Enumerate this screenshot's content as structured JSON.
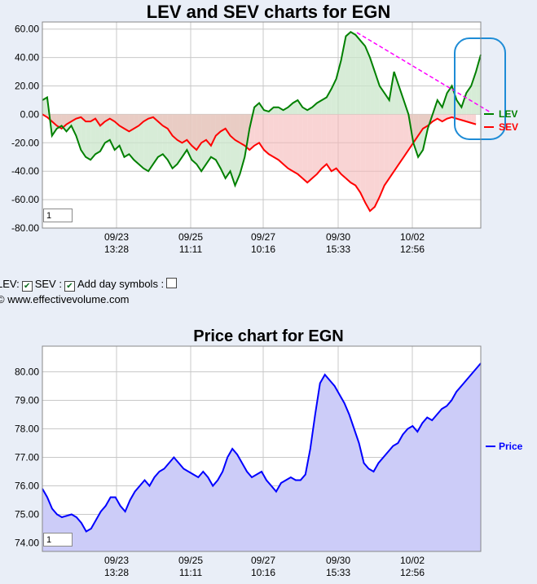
{
  "chart_data": [
    {
      "type": "line",
      "title": "LEV and SEV charts for EGN",
      "ylim": [
        -80,
        65
      ],
      "yticks": [
        "60.00",
        "40.00",
        "20.00",
        "0.00",
        "-20.00",
        "-40.00",
        "-60.00",
        "-80.00"
      ],
      "ytick_values": [
        60,
        40,
        20,
        0,
        -20,
        -40,
        -60,
        -80
      ],
      "xticks": [
        {
          "date": "09/23",
          "time": "13:28"
        },
        {
          "date": "09/25",
          "time": "11:11"
        },
        {
          "date": "09/27",
          "time": "10:16"
        },
        {
          "date": "09/30",
          "time": "15:33"
        },
        {
          "date": "10/02",
          "time": "12:56"
        }
      ],
      "grid": true,
      "series": [
        {
          "name": "LEV",
          "color": "#008000",
          "values": [
            10,
            12,
            -15,
            -10,
            -8,
            -12,
            -8,
            -15,
            -25,
            -30,
            -32,
            -28,
            -26,
            -20,
            -18,
            -25,
            -22,
            -30,
            -28,
            -32,
            -35,
            -38,
            -40,
            -35,
            -30,
            -28,
            -32,
            -38,
            -35,
            -30,
            -25,
            -32,
            -35,
            -40,
            -35,
            -30,
            -32,
            -38,
            -45,
            -40,
            -50,
            -42,
            -30,
            -10,
            5,
            8,
            3,
            2,
            5,
            5,
            3,
            5,
            8,
            10,
            5,
            3,
            5,
            8,
            10,
            12,
            18,
            25,
            38,
            55,
            58,
            56,
            52,
            48,
            40,
            30,
            20,
            15,
            10,
            30,
            20,
            10,
            0,
            -20,
            -30,
            -25,
            -10,
            0,
            10,
            5,
            15,
            20,
            10,
            5,
            15,
            20,
            30,
            42
          ]
        },
        {
          "name": "SEV",
          "color": "#ff0000",
          "values": [
            0,
            -2,
            -5,
            -8,
            -10,
            -7,
            -5,
            -3,
            -2,
            -5,
            -5,
            -3,
            -8,
            -5,
            -3,
            -5,
            -8,
            -10,
            -12,
            -10,
            -8,
            -5,
            -3,
            -2,
            -5,
            -8,
            -10,
            -15,
            -18,
            -20,
            -18,
            -22,
            -25,
            -20,
            -18,
            -22,
            -15,
            -12,
            -10,
            -15,
            -18,
            -20,
            -22,
            -25,
            -22,
            -20,
            -25,
            -28,
            -30,
            -32,
            -35,
            -38,
            -40,
            -42,
            -45,
            -48,
            -45,
            -42,
            -38,
            -35,
            -40,
            -38,
            -42,
            -45,
            -48,
            -50,
            -55,
            -62,
            -68,
            -65,
            -58,
            -50,
            -45,
            -40,
            -35,
            -30,
            -25,
            -20,
            -15,
            -10,
            -8,
            -5,
            -3,
            -5,
            -3,
            -2,
            -3,
            -4,
            -5,
            -6,
            -7
          ]
        }
      ],
      "legend": "right"
    },
    {
      "type": "area",
      "title": "Price chart for EGN",
      "ylim": [
        73.7,
        80.9
      ],
      "yticks": [
        "80.00",
        "79.00",
        "78.00",
        "77.00",
        "76.00",
        "75.00",
        "74.00"
      ],
      "ytick_values": [
        80,
        79,
        78,
        77,
        76,
        75,
        74
      ],
      "xticks": [
        {
          "date": "09/23",
          "time": "13:28"
        },
        {
          "date": "09/25",
          "time": "11:11"
        },
        {
          "date": "09/27",
          "time": "10:16"
        },
        {
          "date": "09/30",
          "time": "15:33"
        },
        {
          "date": "10/02",
          "time": "12:56"
        }
      ],
      "grid": true,
      "series": [
        {
          "name": "Price",
          "color": "#0000ff",
          "fill": "#ccccf8",
          "values": [
            75.9,
            75.6,
            75.2,
            75.0,
            74.9,
            74.95,
            75.0,
            74.9,
            74.7,
            74.4,
            74.5,
            74.8,
            75.1,
            75.3,
            75.6,
            75.6,
            75.3,
            75.1,
            75.5,
            75.8,
            76.0,
            76.2,
            76.0,
            76.3,
            76.5,
            76.6,
            76.8,
            77.0,
            76.8,
            76.6,
            76.5,
            76.4,
            76.3,
            76.5,
            76.3,
            76.0,
            76.2,
            76.5,
            77.0,
            77.3,
            77.1,
            76.8,
            76.5,
            76.3,
            76.4,
            76.5,
            76.2,
            76.0,
            75.8,
            76.1,
            76.2,
            76.3,
            76.2,
            76.2,
            76.4,
            77.3,
            78.5,
            79.6,
            79.9,
            79.7,
            79.5,
            79.2,
            78.9,
            78.5,
            78.0,
            77.5,
            76.8,
            76.6,
            76.5,
            76.8,
            77.0,
            77.2,
            77.4,
            77.5,
            77.8,
            78.0,
            78.1,
            77.9,
            78.2,
            78.4,
            78.3,
            78.5,
            78.7,
            78.8,
            79.0,
            79.3,
            79.5,
            79.7,
            79.9,
            80.1,
            80.3
          ]
        }
      ],
      "legend": "right"
    }
  ],
  "chart1_input_value": "1",
  "chart2_input_value": "1",
  "options": {
    "lev_label": "LEV:",
    "sev_label": "SEV :",
    "day_symbols_label": "Add day symbols :"
  },
  "copyright": "© www.effectivevolume.com"
}
